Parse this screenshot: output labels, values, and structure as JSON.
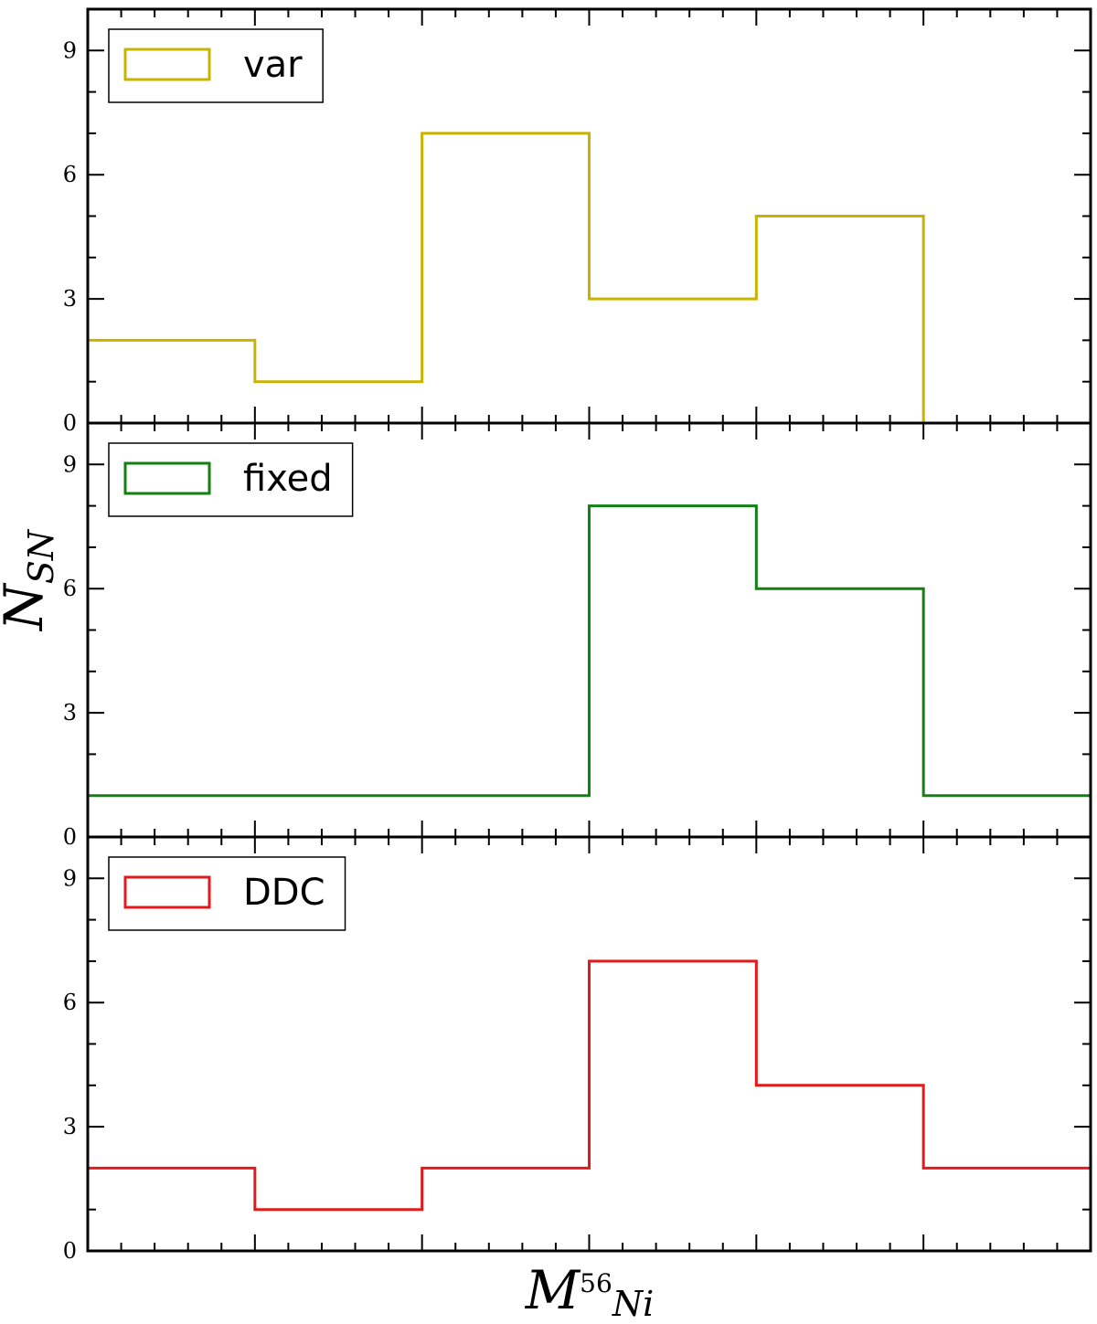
{
  "chart_data": {
    "type": "histogram",
    "panels": [
      {
        "series": {
          "name": "var",
          "color": "#c8b400",
          "values": [
            2,
            1,
            7,
            3,
            5,
            0
          ]
        },
        "legend": {
          "location": "upper-left"
        }
      },
      {
        "series": {
          "name": "fixed",
          "color": "#138013",
          "values": [
            1,
            1,
            1,
            8,
            6,
            1
          ]
        },
        "legend": {
          "location": "upper-left"
        }
      },
      {
        "series": {
          "name": "DDC",
          "color": "#e31a1c",
          "values": [
            2,
            1,
            2,
            7,
            4,
            2
          ]
        },
        "legend": {
          "location": "upper-left"
        }
      }
    ],
    "bins": 6,
    "ylim": [
      0,
      10
    ],
    "yticks": [
      "0",
      "3",
      "6",
      "9"
    ],
    "ylabel": {
      "base": "N",
      "sub": "SN"
    },
    "xlabel": {
      "base": "M",
      "sup": "56",
      "sub": "Ni"
    },
    "xtick_labels_shown": false,
    "shared_x": true
  }
}
